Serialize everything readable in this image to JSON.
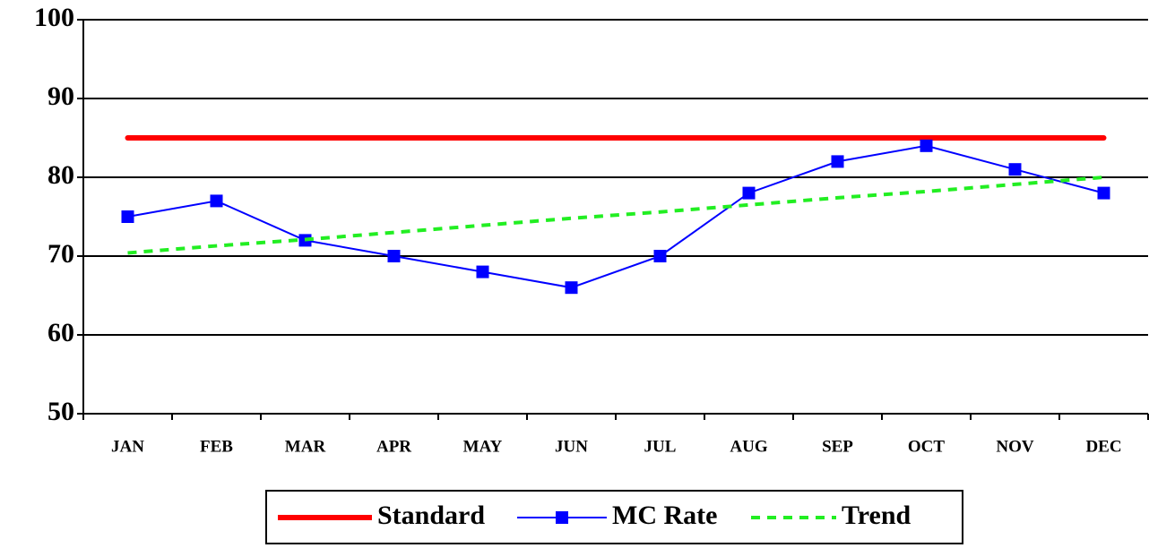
{
  "chart_data": {
    "type": "line",
    "categories": [
      "JAN",
      "FEB",
      "MAR",
      "APR",
      "MAY",
      "JUN",
      "JUL",
      "AUG",
      "SEP",
      "OCT",
      "NOV",
      "DEC"
    ],
    "series": [
      {
        "name": "Standard",
        "color": "#ff0000",
        "style": "solid",
        "marker": "none",
        "values": [
          85,
          85,
          85,
          85,
          85,
          85,
          85,
          85,
          85,
          85,
          85,
          85
        ]
      },
      {
        "name": "MC Rate",
        "color": "#0000ff",
        "style": "solid",
        "marker": "square",
        "values": [
          75,
          77,
          72,
          70,
          68,
          66,
          70,
          78,
          82,
          84,
          81,
          78
        ]
      },
      {
        "name": "Trend",
        "color": "#22ee22",
        "style": "dashed",
        "marker": "none",
        "values": [
          70.4,
          71.3,
          72.1,
          73.0,
          73.9,
          74.8,
          75.6,
          76.5,
          77.4,
          78.2,
          79.1,
          80.0
        ]
      }
    ],
    "ylim": [
      50,
      100
    ],
    "yticks": [
      50,
      60,
      70,
      80,
      90,
      100
    ],
    "grid": true,
    "legend": "bottom"
  }
}
